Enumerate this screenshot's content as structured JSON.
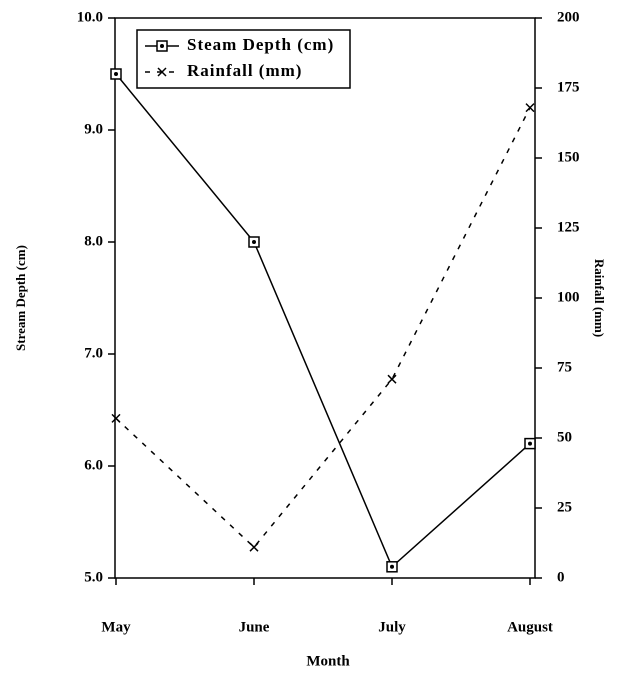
{
  "chart_data": {
    "type": "line",
    "xlabel": "Month",
    "ylabel": "Stream Depth (cm)",
    "y2label": "Rainfall (mm)",
    "categories": [
      "May",
      "June",
      "July",
      "August"
    ],
    "series": [
      {
        "name": "Steam Depth (cm)",
        "color": "#000000",
        "marker": "square",
        "linestyle": "solid",
        "values": [
          9.5,
          8.0,
          5.1,
          6.2
        ]
      },
      {
        "name": "Rainfall (mm)",
        "color": "#000000",
        "marker": "x",
        "linestyle": "dashed",
        "axis": "y2",
        "values": [
          57,
          11,
          71,
          168
        ]
      }
    ],
    "ylim": [
      5,
      10
    ],
    "yticks": [
      {
        "value": 5,
        "label": "5.0"
      },
      {
        "value": 6,
        "label": "6.0"
      },
      {
        "value": 7,
        "label": "7.0"
      },
      {
        "value": 8,
        "label": "8.0"
      },
      {
        "value": 9,
        "label": "9.0"
      },
      {
        "value": 10,
        "label": "10.0"
      }
    ],
    "y2lim": [
      0,
      200
    ],
    "y2ticks": [
      0,
      25,
      50,
      75,
      100,
      125,
      150,
      175,
      200
    ],
    "legend": "upper left",
    "grid": false
  }
}
